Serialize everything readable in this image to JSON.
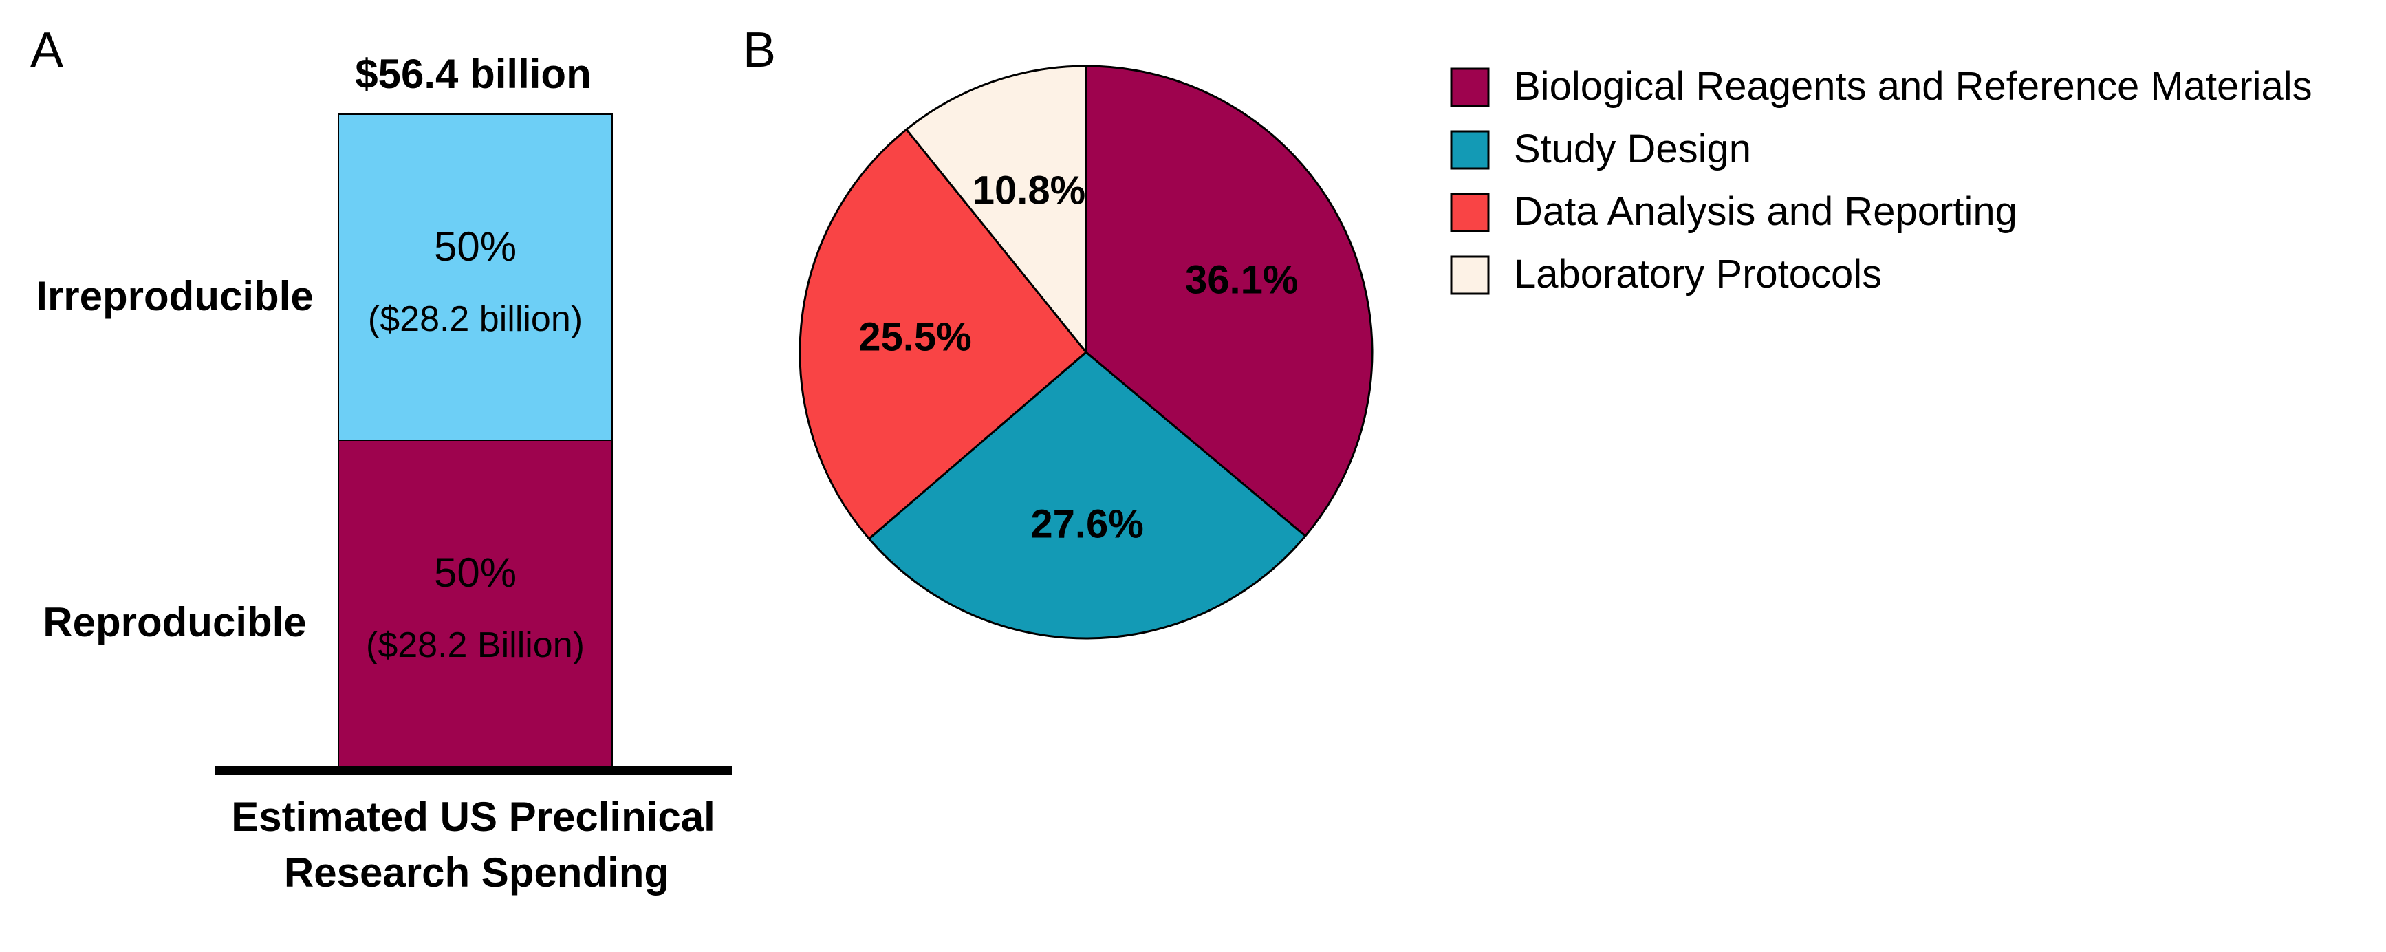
{
  "panel_labels": {
    "a": "A",
    "b": "B"
  },
  "chart_data": [
    {
      "type": "bar",
      "subtype": "stacked",
      "title": "$56.4 billion",
      "xlabel": [
        "Estimated US Preclinical",
        "Research Spending"
      ],
      "categories": [
        ""
      ],
      "series": [
        {
          "name": "Reproducible",
          "values": [
            50
          ],
          "label_pct": "50%",
          "label_amount": "($28.2 Billion)",
          "color": "#9E034E"
        },
        {
          "name": "Irreproducible",
          "values": [
            50
          ],
          "label_pct": "50%",
          "label_amount": "($28.2 billion)",
          "color": "#6DCFF6"
        }
      ],
      "ylim": [
        0,
        100
      ],
      "grid": false,
      "legend": "none"
    },
    {
      "type": "pie",
      "slices": [
        {
          "name": "Biological Reagents and Reference Materials",
          "value": 36.1,
          "label": "36.1%",
          "color": "#9E034E"
        },
        {
          "name": "Study Design",
          "value": 27.6,
          "label": "27.6%",
          "color": "#139AB5"
        },
        {
          "name": "Data Analysis and Reporting",
          "value": 25.5,
          "label": "25.5%",
          "color": "#F94445"
        },
        {
          "name": "Laboratory Protocols",
          "value": 10.8,
          "label": "10.8%",
          "color": "#FDF2E6"
        }
      ],
      "legend": "top-right"
    }
  ]
}
